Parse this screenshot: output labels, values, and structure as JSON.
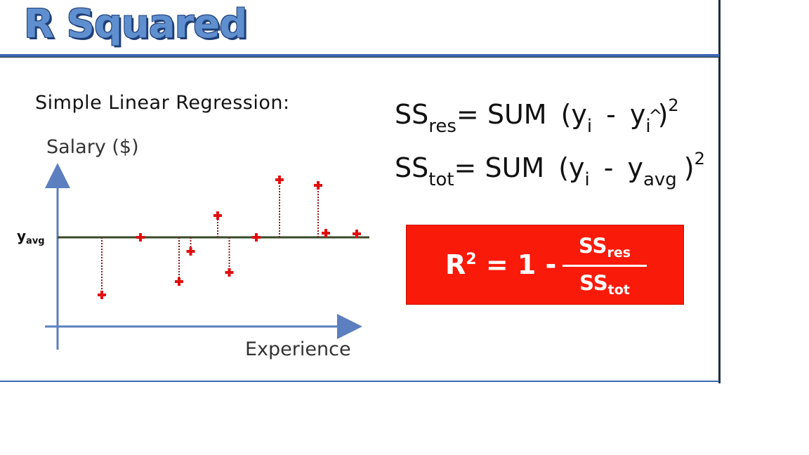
{
  "slide": {
    "title": "R Squared",
    "subtitle": "Simple Linear Regression:"
  },
  "plot": {
    "y_axis_label": "Salary ($)",
    "x_axis_label": "Experience",
    "yavg_main": "y",
    "yavg_sub": "avg",
    "y_avg": 0,
    "points": [
      {
        "x": 1,
        "y": -82
      },
      {
        "x": 2,
        "y": 0
      },
      {
        "x": 3,
        "y": -63
      },
      {
        "x": 3.3,
        "y": -20
      },
      {
        "x": 4,
        "y": 31
      },
      {
        "x": 4.3,
        "y": -50
      },
      {
        "x": 5,
        "y": 0
      },
      {
        "x": 5.6,
        "y": 82
      },
      {
        "x": 6.6,
        "y": 74
      },
      {
        "x": 6.8,
        "y": 6
      },
      {
        "x": 7.6,
        "y": 5
      }
    ],
    "colors": {
      "axis": "#5b7fbf",
      "mean_line": "#3a4a2a",
      "point": "#e01010",
      "residual": "#8a1a1a"
    }
  },
  "equations": {
    "res": {
      "ss": "SS",
      "ss_sub": "res",
      "eq": "= SUM",
      "open": "(y",
      "i1": "i",
      "minus": "-",
      "y2": "y",
      "i2": "i",
      "close": ")",
      "pow": "2"
    },
    "tot": {
      "ss": "SS",
      "ss_sub": "tot",
      "eq": "= SUM",
      "open": "(y",
      "i1": "i",
      "minus": "-",
      "y2": "y",
      "sub2": "avg",
      "close": ")",
      "pow": "2"
    }
  },
  "formula": {
    "lhs": "R",
    "lhs_pow": "2",
    "rhs": "= 1 -",
    "num": "SS",
    "num_sub": "res",
    "den": "SS",
    "den_sub": "tot",
    "background": "#fa1a0a"
  }
}
